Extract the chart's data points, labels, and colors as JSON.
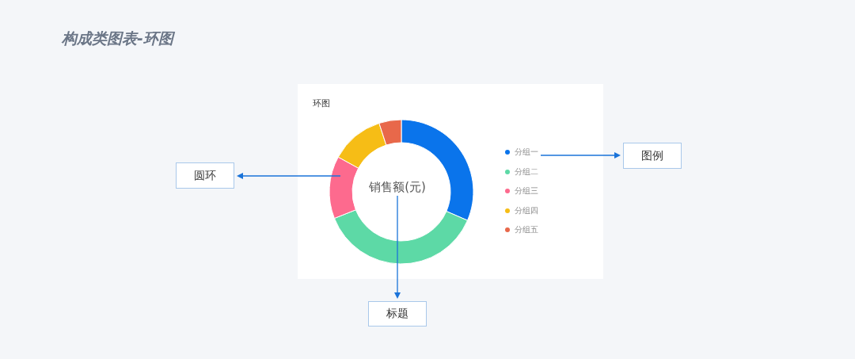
{
  "chart_data": {
    "type": "donut",
    "title": "构成类图表-环图",
    "subtitle": "环图",
    "categories": [
      "分组一",
      "分组二",
      "分组三",
      "分组四",
      "分组五"
    ],
    "values": [
      31.5,
      37.5,
      14,
      12,
      5
    ],
    "colors": [
      "#0a74eb",
      "#5dd9a6",
      "#fd6a8e",
      "#f6bd16",
      "#e8684a"
    ],
    "legend": "right",
    "annotations": [
      "销售额(元)",
      "圆环",
      "图例",
      "标题"
    ]
  }
}
